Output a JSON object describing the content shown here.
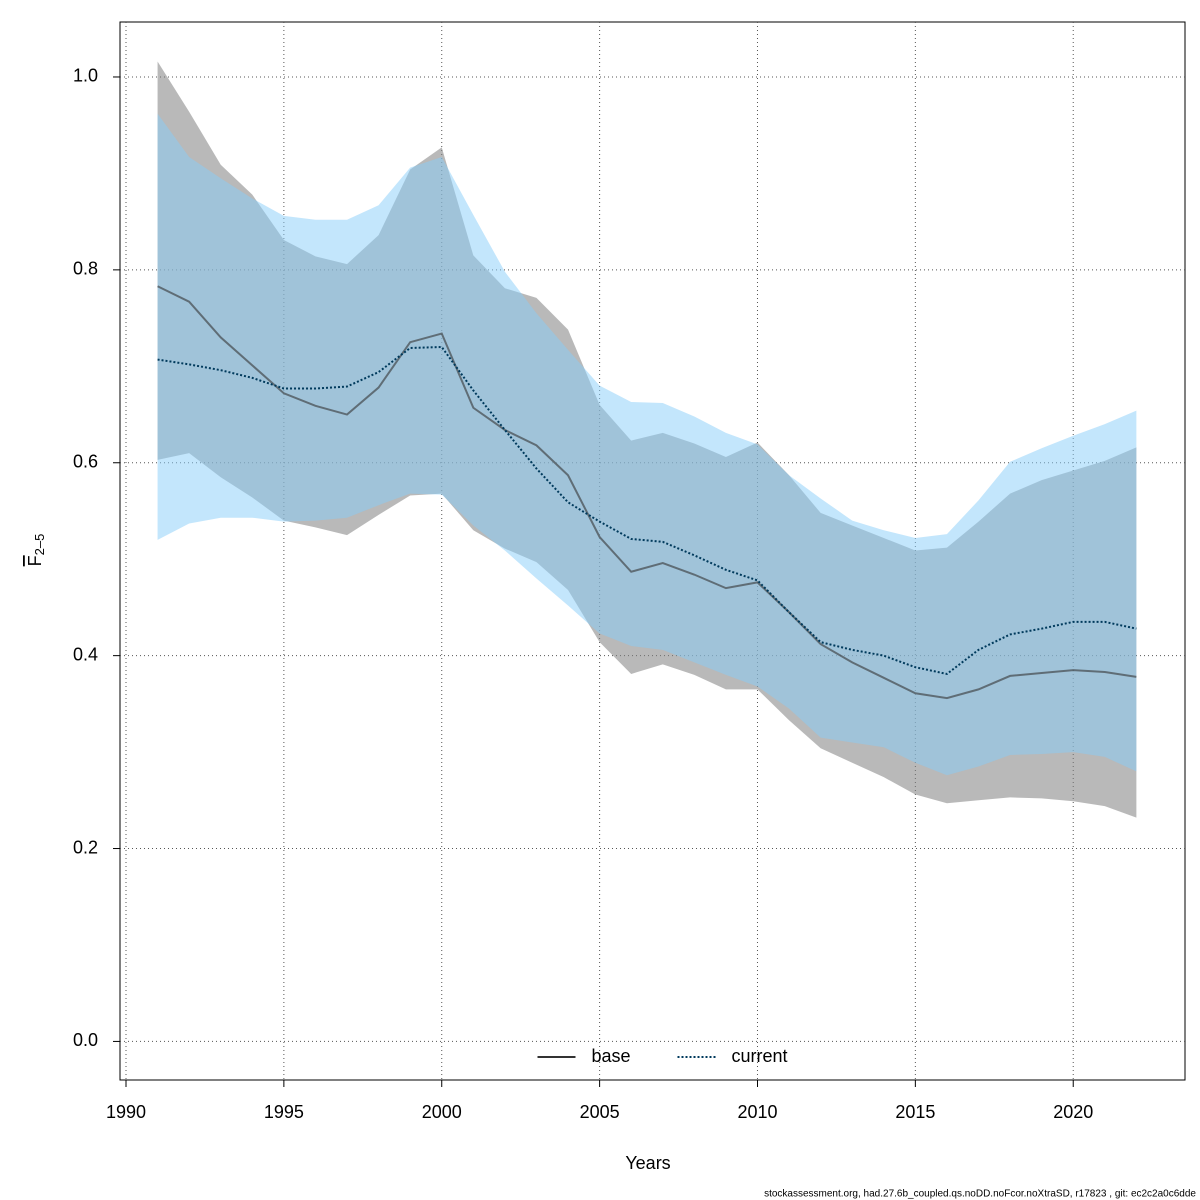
{
  "chart_data": {
    "type": "line",
    "xlabel": "Years",
    "ylabel": {
      "text": "F",
      "subscript": "2–5"
    },
    "footnote": "stockassessment.org, had.27.6b_coupled.qs.noDD.noFcor.noXtraSD, r17823 , git: ec2c2a0c6dde",
    "x": [
      1991,
      1992,
      1993,
      1994,
      1995,
      1996,
      1997,
      1998,
      1999,
      2000,
      2001,
      2002,
      2003,
      2004,
      2005,
      2006,
      2007,
      2008,
      2009,
      2010,
      2011,
      2012,
      2013,
      2014,
      2015,
      2016,
      2017,
      2018,
      2019,
      2020,
      2021,
      2022
    ],
    "xlim": [
      1989.81,
      2023.54
    ],
    "xticks": [
      1990,
      1995,
      2000,
      2005,
      2010,
      2015,
      2020
    ],
    "ylim": [
      -0.04,
      1.057
    ],
    "yticks": [
      {
        "value": 0,
        "label": "0.0"
      },
      0.2,
      0.4,
      0.6,
      0.8,
      {
        "value": 1,
        "label": "1.0"
      }
    ],
    "grid": true,
    "legend": "bottom",
    "series": [
      {
        "name": "base",
        "color": "#333333",
        "band_color": "rgba(128,128,128,0.55)",
        "dash": "solid",
        "values": [
          0.783,
          0.767,
          0.73,
          0.701,
          0.672,
          0.659,
          0.65,
          0.678,
          0.725,
          0.734,
          0.657,
          0.634,
          0.618,
          0.587,
          0.523,
          0.487,
          0.496,
          0.484,
          0.47,
          0.476,
          0.445,
          0.412,
          0.393,
          0.377,
          0.361,
          0.356,
          0.365,
          0.379,
          0.382,
          0.385,
          0.383,
          0.378
        ],
        "upper": [
          1.016,
          0.964,
          0.909,
          0.878,
          0.831,
          0.814,
          0.806,
          0.836,
          0.904,
          0.927,
          0.815,
          0.781,
          0.771,
          0.738,
          0.66,
          0.623,
          0.631,
          0.62,
          0.606,
          0.621,
          0.587,
          0.548,
          0.535,
          0.522,
          0.509,
          0.512,
          0.539,
          0.568,
          0.582,
          0.592,
          0.602,
          0.616
        ],
        "lower": [
          0.603,
          0.61,
          0.585,
          0.564,
          0.54,
          0.533,
          0.525,
          0.546,
          0.566,
          0.568,
          0.53,
          0.511,
          0.497,
          0.468,
          0.414,
          0.381,
          0.391,
          0.38,
          0.365,
          0.365,
          0.333,
          0.304,
          0.289,
          0.274,
          0.256,
          0.247,
          0.25,
          0.253,
          0.252,
          0.249,
          0.244,
          0.232
        ]
      },
      {
        "name": "current",
        "color": "#003a5c",
        "band_color": "rgba(135,206,250,0.5)",
        "dash": "dotted",
        "values": [
          0.707,
          0.702,
          0.696,
          0.688,
          0.677,
          0.677,
          0.679,
          0.694,
          0.719,
          0.72,
          0.675,
          0.634,
          0.594,
          0.559,
          0.539,
          0.521,
          0.518,
          0.504,
          0.489,
          0.478,
          0.445,
          0.414,
          0.406,
          0.4,
          0.388,
          0.381,
          0.406,
          0.422,
          0.428,
          0.435,
          0.435,
          0.428
        ],
        "upper": [
          0.962,
          0.917,
          0.895,
          0.874,
          0.856,
          0.852,
          0.852,
          0.867,
          0.906,
          0.917,
          0.857,
          0.798,
          0.755,
          0.717,
          0.68,
          0.663,
          0.662,
          0.648,
          0.631,
          0.619,
          0.587,
          0.563,
          0.54,
          0.53,
          0.522,
          0.526,
          0.561,
          0.601,
          0.615,
          0.628,
          0.64,
          0.654
        ],
        "lower": [
          0.52,
          0.537,
          0.543,
          0.543,
          0.539,
          0.54,
          0.543,
          0.556,
          0.568,
          0.567,
          0.535,
          0.509,
          0.48,
          0.452,
          0.423,
          0.41,
          0.406,
          0.393,
          0.38,
          0.368,
          0.345,
          0.315,
          0.31,
          0.305,
          0.289,
          0.276,
          0.285,
          0.297,
          0.298,
          0.3,
          0.295,
          0.28
        ]
      }
    ]
  }
}
